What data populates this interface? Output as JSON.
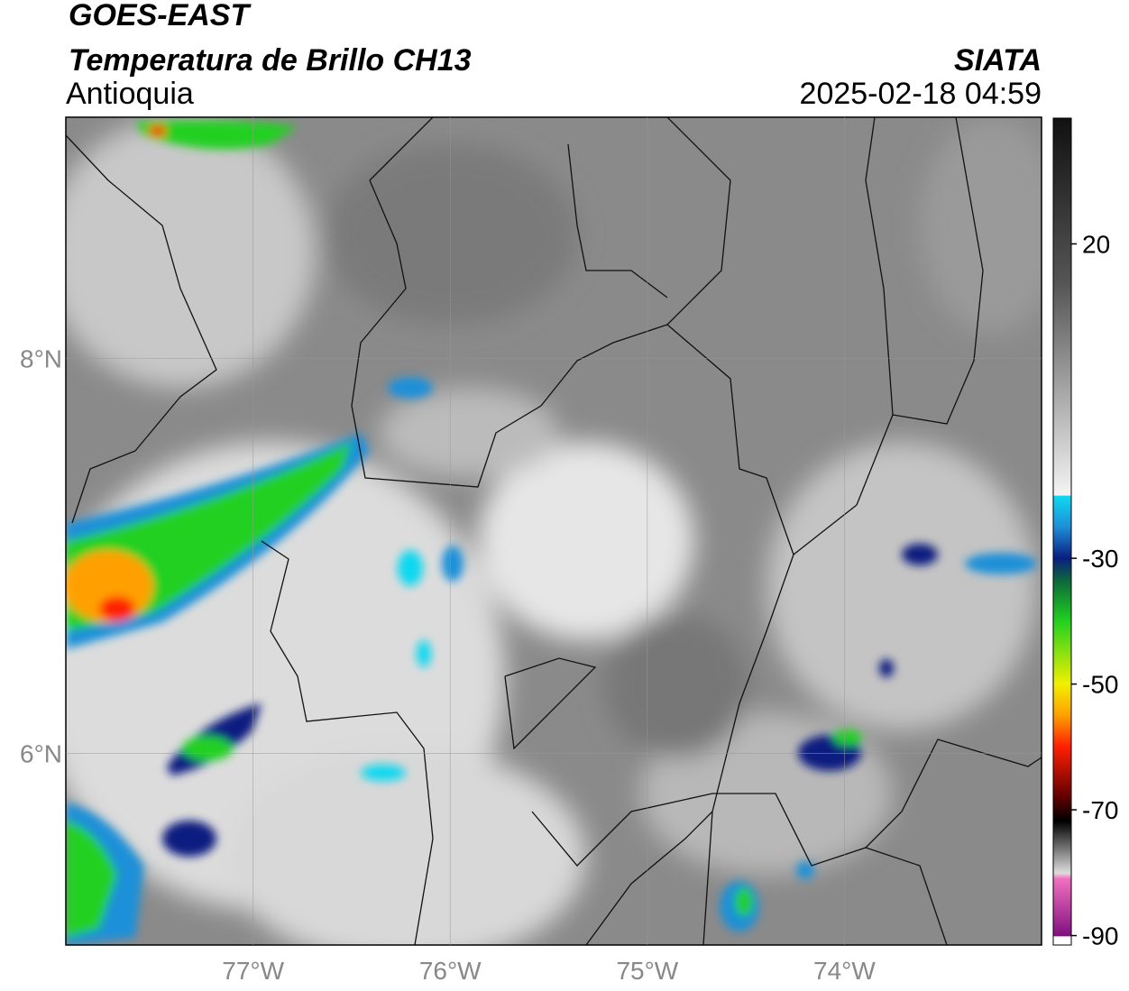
{
  "header": {
    "title": "GOES-EAST",
    "subtitle": "Temperatura de Brillo CH13",
    "region": "Antioquia",
    "source": "SIATA",
    "datetime": "2025-02-18 04:59"
  },
  "map": {
    "xlim": [
      -77.95,
      -73
    ],
    "ylim": [
      5.03,
      9.22
    ],
    "xticks": [
      {
        "value": -77,
        "label": "77°W"
      },
      {
        "value": -76,
        "label": "76°W"
      },
      {
        "value": -75,
        "label": "75°W"
      },
      {
        "value": -74,
        "label": "74°W"
      }
    ],
    "yticks": [
      {
        "value": 6,
        "label": "6°N"
      },
      {
        "value": 8,
        "label": "8°N"
      }
    ]
  },
  "colorbar": {
    "lim": [
      -91.5,
      40
    ],
    "ticks": [
      20,
      -30,
      -50,
      -70,
      -90
    ]
  }
}
